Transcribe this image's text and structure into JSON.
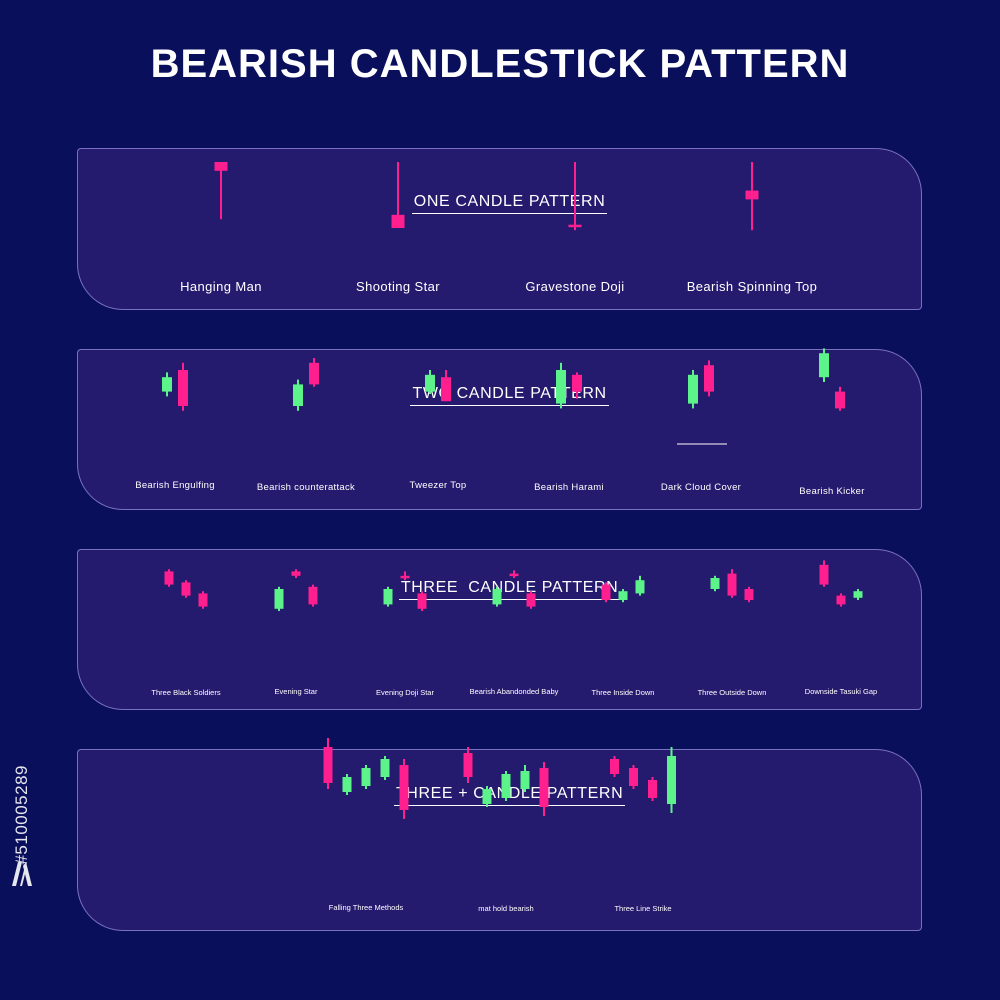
{
  "title": "BEARISH CANDLESTICK PATTERN",
  "colors": {
    "background": "#0a0f5c",
    "panel": "#241a6e",
    "bullish": "#5cf38a",
    "bearish": "#ff1f8e"
  },
  "side_text": "#510005289",
  "icons": [
    "adobe-stock-logo-icon"
  ],
  "sections": [
    {
      "title": "ONE CANDLE PATTERN",
      "patterns": [
        {
          "label": "Hanging Man",
          "candles": [
            {
              "color": "bear",
              "open": 100,
              "close": 92,
              "high": 100,
              "low": 48
            }
          ]
        },
        {
          "label": "Shooting Star",
          "candles": [
            {
              "color": "bear",
              "open": 52,
              "close": 40,
              "high": 100,
              "low": 40
            }
          ]
        },
        {
          "label": "Gravestone Doji",
          "candles": [
            {
              "color": "bear",
              "open": 43,
              "close": 41,
              "high": 100,
              "low": 38
            }
          ]
        },
        {
          "label": "Bearish Spinning Top",
          "candles": [
            {
              "color": "bear",
              "open": 74,
              "close": 66,
              "high": 100,
              "low": 38
            }
          ]
        }
      ]
    },
    {
      "title": "TWO CANDLE PATTERN",
      "patterns": [
        {
          "label": "Bearish Engulfing",
          "candles": [
            {
              "color": "bull",
              "open": 72,
              "close": 84,
              "high": 88,
              "low": 68
            },
            {
              "color": "bear",
              "open": 90,
              "close": 60,
              "high": 96,
              "low": 56
            }
          ]
        },
        {
          "label": "Bearish counterattack",
          "candles": [
            {
              "color": "bull",
              "open": 60,
              "close": 78,
              "high": 82,
              "low": 56
            },
            {
              "color": "bear",
              "open": 96,
              "close": 78,
              "high": 100,
              "low": 76
            }
          ]
        },
        {
          "label": "Tweezer Top",
          "candles": [
            {
              "color": "bull",
              "open": 72,
              "close": 86,
              "high": 90,
              "low": 70
            },
            {
              "color": "bear",
              "open": 84,
              "close": 64,
              "high": 90,
              "low": 64
            }
          ]
        },
        {
          "label": "Bearish Harami",
          "candles": [
            {
              "color": "bull",
              "open": 62,
              "close": 90,
              "high": 96,
              "low": 58
            },
            {
              "color": "bear",
              "open": 86,
              "close": 72,
              "high": 88,
              "low": 66
            }
          ]
        },
        {
          "label": "Dark Cloud Cover",
          "candles": [
            {
              "color": "bull",
              "open": 62,
              "close": 86,
              "high": 90,
              "low": 58
            },
            {
              "color": "bear",
              "open": 94,
              "close": 72,
              "high": 98,
              "low": 68
            }
          ]
        },
        {
          "label": "Bearish Kicker",
          "candles": [
            {
              "color": "bull",
              "open": 84,
              "close": 104,
              "high": 108,
              "low": 80
            },
            {
              "color": "bear",
              "open": 72,
              "close": 58,
              "high": 76,
              "low": 56
            }
          ]
        }
      ]
    },
    {
      "title": "THREE  CANDLE PATTERN",
      "patterns": [
        {
          "label": "Three Black Soldiers",
          "candles": [
            {
              "color": "bear",
              "open": 96,
              "close": 84,
              "high": 98,
              "low": 82
            },
            {
              "color": "bear",
              "open": 86,
              "close": 74,
              "high": 88,
              "low": 72
            },
            {
              "color": "bear",
              "open": 76,
              "close": 64,
              "high": 78,
              "low": 62
            }
          ]
        },
        {
          "label": "Evening Star",
          "candles": [
            {
              "color": "bull",
              "open": 62,
              "close": 80,
              "high": 82,
              "low": 60
            },
            {
              "color": "bear",
              "open": 96,
              "close": 92,
              "high": 98,
              "low": 90
            },
            {
              "color": "bear",
              "open": 82,
              "close": 66,
              "high": 84,
              "low": 64
            }
          ]
        },
        {
          "label": "Evening Doji Star",
          "candles": [
            {
              "color": "bull",
              "open": 66,
              "close": 80,
              "high": 82,
              "low": 64
            },
            {
              "color": "bear",
              "open": 92,
              "close": 92,
              "high": 96,
              "low": 88
            },
            {
              "color": "bear",
              "open": 76,
              "close": 62,
              "high": 78,
              "low": 60
            }
          ]
        },
        {
          "label": "Bearish Abandonded Baby",
          "candles": [
            {
              "color": "bull",
              "open": 66,
              "close": 80,
              "high": 82,
              "low": 64
            },
            {
              "color": "bear",
              "open": 94,
              "close": 92,
              "high": 97,
              "low": 90
            },
            {
              "color": "bear",
              "open": 76,
              "close": 64,
              "high": 78,
              "low": 62
            }
          ]
        },
        {
          "label": "Three Inside Down",
          "candles": [
            {
              "color": "bear",
              "open": 84,
              "close": 70,
              "high": 86,
              "low": 68
            },
            {
              "color": "bull",
              "open": 70,
              "close": 78,
              "high": 80,
              "low": 68
            },
            {
              "color": "bull",
              "open": 76,
              "close": 88,
              "high": 92,
              "low": 74
            }
          ]
        },
        {
          "label": "Three Outside Down",
          "candles": [
            {
              "color": "bull",
              "open": 80,
              "close": 90,
              "high": 92,
              "low": 78
            },
            {
              "color": "bear",
              "open": 94,
              "close": 74,
              "high": 98,
              "low": 72
            },
            {
              "color": "bear",
              "open": 80,
              "close": 70,
              "high": 82,
              "low": 68
            }
          ]
        },
        {
          "label": "Downside Tasuki Gap",
          "candles": [
            {
              "color": "bear",
              "open": 102,
              "close": 84,
              "high": 106,
              "low": 82
            },
            {
              "color": "bear",
              "open": 74,
              "close": 66,
              "high": 76,
              "low": 64
            },
            {
              "color": "bull",
              "open": 72,
              "close": 78,
              "high": 80,
              "low": 70
            }
          ]
        }
      ]
    },
    {
      "title": "THREE + CANDLE PATTERN",
      "patterns": [
        {
          "label": "Falling Three Methods",
          "candles": [
            {
              "color": "bear",
              "open": 100,
              "close": 76,
              "high": 106,
              "low": 72
            },
            {
              "color": "bull",
              "open": 70,
              "close": 80,
              "high": 82,
              "low": 68
            },
            {
              "color": "bull",
              "open": 74,
              "close": 86,
              "high": 88,
              "low": 72
            },
            {
              "color": "bull",
              "open": 80,
              "close": 92,
              "high": 94,
              "low": 78
            },
            {
              "color": "bear",
              "open": 88,
              "close": 58,
              "high": 92,
              "low": 52
            }
          ]
        },
        {
          "label": "mat hold bearish",
          "candles": [
            {
              "color": "bear",
              "open": 96,
              "close": 80,
              "high": 100,
              "low": 76
            },
            {
              "color": "bull",
              "open": 62,
              "close": 72,
              "high": 74,
              "low": 60
            },
            {
              "color": "bull",
              "open": 66,
              "close": 82,
              "high": 84,
              "low": 64
            },
            {
              "color": "bull",
              "open": 72,
              "close": 84,
              "high": 88,
              "low": 70
            },
            {
              "color": "bear",
              "open": 86,
              "close": 60,
              "high": 90,
              "low": 54
            }
          ]
        },
        {
          "label": "Three Line Strike",
          "candles": [
            {
              "color": "bear",
              "open": 92,
              "close": 82,
              "high": 94,
              "low": 80
            },
            {
              "color": "bear",
              "open": 86,
              "close": 74,
              "high": 88,
              "low": 72
            },
            {
              "color": "bear",
              "open": 78,
              "close": 66,
              "high": 80,
              "low": 64
            },
            {
              "color": "bull",
              "open": 62,
              "close": 94,
              "high": 100,
              "low": 56
            }
          ]
        }
      ]
    }
  ]
}
